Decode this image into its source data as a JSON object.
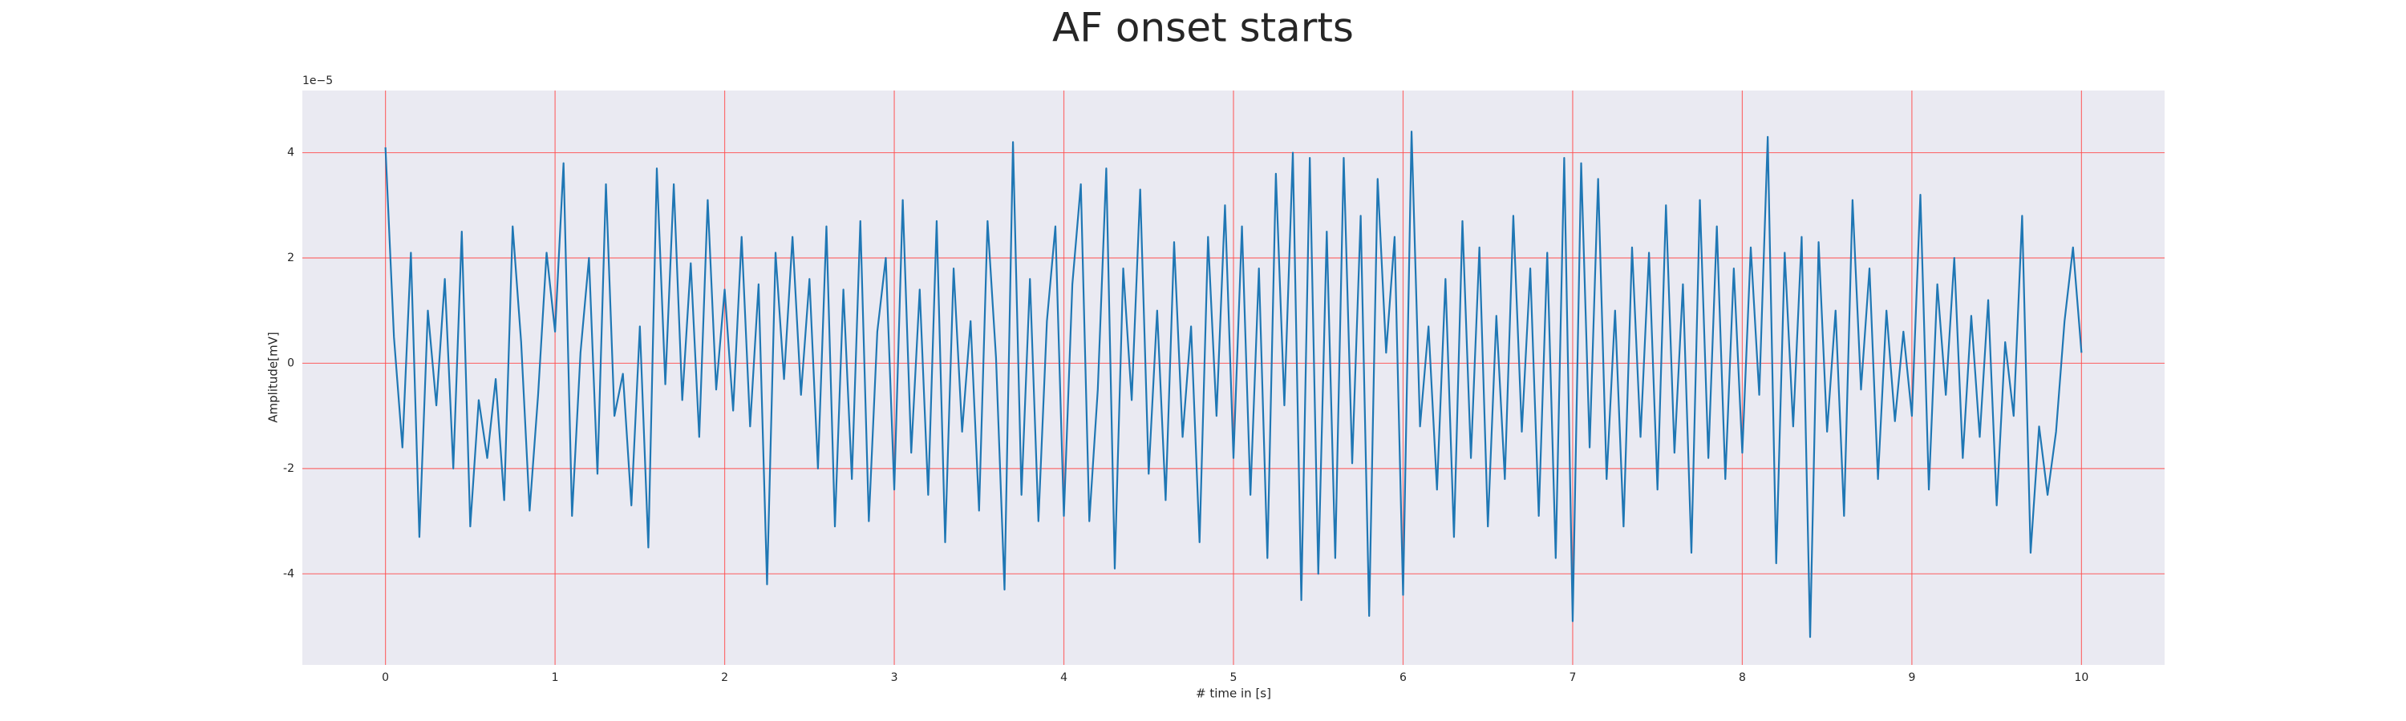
{
  "chart_data": {
    "type": "line",
    "title": "AF onset starts",
    "xlabel": "# time in [s]",
    "ylabel": "Amplitude[mV]",
    "y_offset_label": "1e−5",
    "xlim": [
      -0.49,
      10.49
    ],
    "ylim": [
      -5.73,
      5.18
    ],
    "xticks": [
      0,
      1,
      2,
      3,
      4,
      5,
      6,
      7,
      8,
      9,
      10
    ],
    "yticks": [
      -4,
      -2,
      0,
      2,
      4
    ],
    "grid": true,
    "background": "#eaeaf2",
    "grid_color": "#ff4d4d",
    "series": [
      {
        "color": "#1f77b4",
        "x": [
          0,
          0.05,
          0.1,
          0.15,
          0.2,
          0.25,
          0.3,
          0.35,
          0.4,
          0.45,
          0.5,
          0.55,
          0.6,
          0.65,
          0.7,
          0.75,
          0.8,
          0.85,
          0.9,
          0.95,
          1,
          1.05,
          1.1,
          1.15,
          1.2,
          1.25,
          1.3,
          1.35,
          1.4,
          1.45,
          1.5,
          1.55,
          1.6,
          1.65,
          1.7,
          1.75,
          1.8,
          1.85,
          1.9,
          1.95,
          2,
          2.05,
          2.1,
          2.15,
          2.2,
          2.25,
          2.3,
          2.35,
          2.4,
          2.45,
          2.5,
          2.55,
          2.6,
          2.65,
          2.7,
          2.75,
          2.8,
          2.85,
          2.9,
          2.95,
          3,
          3.05,
          3.1,
          3.15,
          3.2,
          3.25,
          3.3,
          3.35,
          3.4,
          3.45,
          3.5,
          3.55,
          3.6,
          3.65,
          3.7,
          3.75,
          3.8,
          3.85,
          3.9,
          3.95,
          4,
          4.05,
          4.1,
          4.15,
          4.2,
          4.25,
          4.3,
          4.35,
          4.4,
          4.45,
          4.5,
          4.55,
          4.6,
          4.65,
          4.7,
          4.75,
          4.8,
          4.85,
          4.9,
          4.95,
          5,
          5.05,
          5.1,
          5.15,
          5.2,
          5.25,
          5.3,
          5.35,
          5.4,
          5.45,
          5.5,
          5.55,
          5.6,
          5.65,
          5.7,
          5.75,
          5.8,
          5.85,
          5.9,
          5.95,
          6,
          6.05,
          6.1,
          6.15,
          6.2,
          6.25,
          6.3,
          6.35,
          6.4,
          6.45,
          6.5,
          6.55,
          6.6,
          6.65,
          6.7,
          6.75,
          6.8,
          6.85,
          6.9,
          6.95,
          7,
          7.05,
          7.1,
          7.15,
          7.2,
          7.25,
          7.3,
          7.35,
          7.4,
          7.45,
          7.5,
          7.55,
          7.6,
          7.65,
          7.7,
          7.75,
          7.8,
          7.85,
          7.9,
          7.95,
          8,
          8.05,
          8.1,
          8.15,
          8.2,
          8.25,
          8.3,
          8.35,
          8.4,
          8.45,
          8.5,
          8.55,
          8.6,
          8.65,
          8.7,
          8.75,
          8.8,
          8.85,
          8.9,
          8.95,
          9,
          9.05,
          9.1,
          9.15,
          9.2,
          9.25,
          9.3,
          9.35,
          9.4,
          9.45,
          9.5,
          9.55,
          9.6,
          9.65,
          9.7,
          9.75,
          9.8,
          9.85,
          9.9,
          9.95,
          10
        ],
        "values": [
          4.1,
          0.5,
          -1.6,
          2.1,
          -3.3,
          1.0,
          -0.8,
          1.6,
          -2.0,
          2.5,
          -3.1,
          -0.7,
          -1.8,
          -0.3,
          -2.6,
          2.6,
          0.4,
          -2.8,
          -0.6,
          2.1,
          0.6,
          3.8,
          -2.9,
          0.2,
          2.0,
          -2.1,
          3.4,
          -1.0,
          -0.2,
          -2.7,
          0.7,
          -3.5,
          3.7,
          -0.4,
          3.4,
          -0.7,
          1.9,
          -1.4,
          3.1,
          -0.5,
          1.4,
          -0.9,
          2.4,
          -1.2,
          1.5,
          -4.2,
          2.1,
          -0.3,
          2.4,
          -0.6,
          1.6,
          -2.0,
          2.6,
          -3.1,
          1.4,
          -2.2,
          2.7,
          -3.0,
          0.6,
          2.0,
          -2.4,
          3.1,
          -1.7,
          1.4,
          -2.5,
          2.7,
          -3.4,
          1.8,
          -1.3,
          0.8,
          -2.8,
          2.7,
          0.1,
          -4.3,
          4.2,
          -2.5,
          1.6,
          -3.0,
          0.8,
          2.6,
          -2.9,
          1.5,
          3.4,
          -3.0,
          -0.5,
          3.7,
          -3.9,
          1.8,
          -0.7,
          3.3,
          -2.1,
          1.0,
          -2.6,
          2.3,
          -1.4,
          0.7,
          -3.4,
          2.4,
          -1.0,
          3.0,
          -1.8,
          2.6,
          -2.5,
          1.8,
          -3.7,
          3.6,
          -0.8,
          4.0,
          -4.5,
          3.9,
          -4.0,
          2.5,
          -3.7,
          3.9,
          -1.9,
          2.8,
          -4.8,
          3.5,
          0.2,
          2.4,
          -4.4,
          4.4,
          -1.2,
          0.7,
          -2.4,
          1.6,
          -3.3,
          2.7,
          -1.8,
          2.2,
          -3.1,
          0.9,
          -2.2,
          2.8,
          -1.3,
          1.8,
          -2.9,
          2.1,
          -3.7,
          3.9,
          -4.9,
          3.8,
          -1.6,
          3.5,
          -2.2,
          1.0,
          -3.1,
          2.2,
          -1.4,
          2.1,
          -2.4,
          3.0,
          -1.7,
          1.5,
          -3.6,
          3.1,
          -1.8,
          2.6,
          -2.2,
          1.8,
          -1.7,
          2.2,
          -0.6,
          4.3,
          -3.8,
          2.1,
          -1.2,
          2.4,
          -5.2,
          2.3,
          -1.3,
          1.0,
          -2.9,
          3.1,
          -0.5,
          1.8,
          -2.2,
          1.0,
          -1.1,
          0.6,
          -1.0,
          3.2,
          -2.4,
          1.5,
          -0.6,
          2.0,
          -1.8,
          0.9,
          -1.4,
          1.2,
          -2.7,
          0.4,
          -1.0,
          2.8,
          -3.6,
          -1.2,
          -2.5,
          -1.3,
          0.8,
          2.2,
          0.2
        ]
      }
    ]
  }
}
